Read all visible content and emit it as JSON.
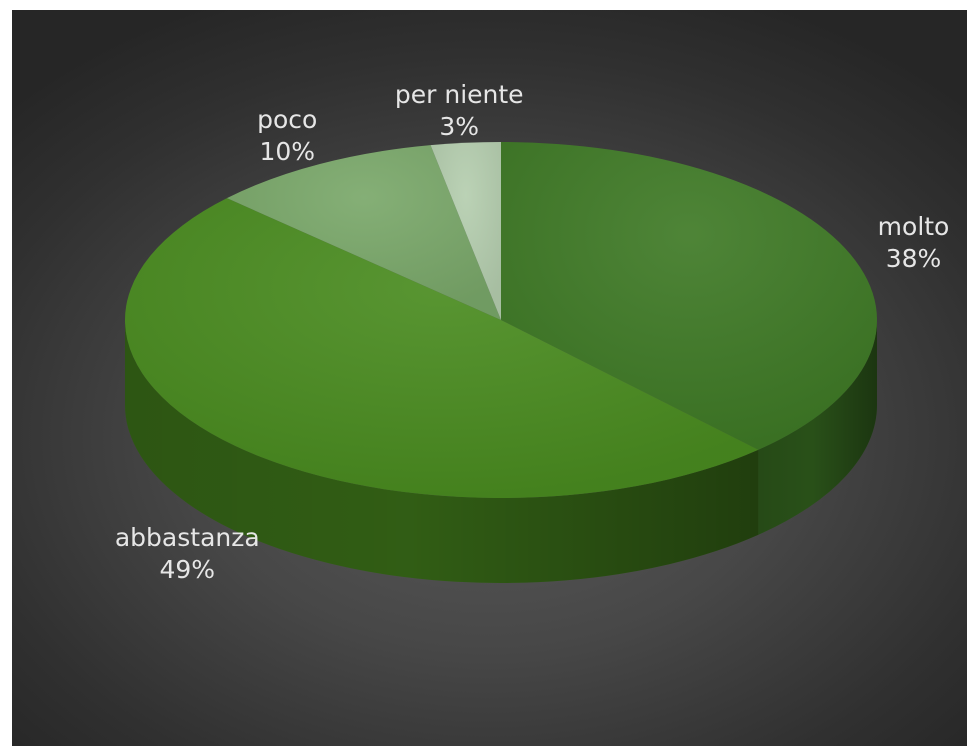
{
  "chart_data": {
    "type": "pie",
    "title": "",
    "style": "3d",
    "slices": [
      {
        "label": "molto",
        "value": 38,
        "value_label": "38%",
        "color": "#3f7a26"
      },
      {
        "label": "abbastanza",
        "value": 49,
        "value_label": "49%",
        "color": "#4a8c20"
      },
      {
        "label": "poco",
        "value": 10,
        "value_label": "10%",
        "color": "#7aa86a"
      },
      {
        "label": "per niente",
        "value": 3,
        "value_label": "3%",
        "color": "#b5ceaf"
      }
    ],
    "legend": "none",
    "data_labels": "outside"
  },
  "background_color": "#3f3f3f",
  "label_color": "#e6e6e6"
}
